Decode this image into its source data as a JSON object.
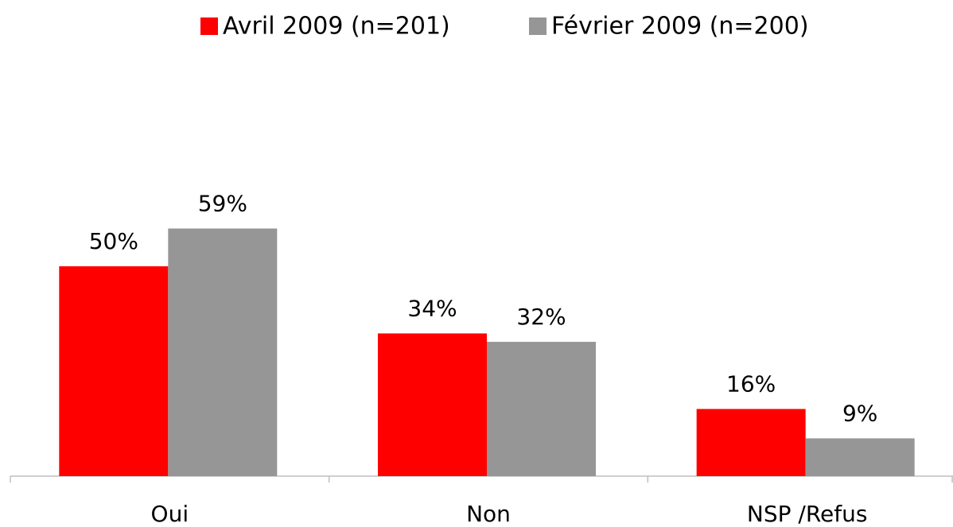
{
  "chart_data": {
    "type": "bar",
    "categories": [
      "Oui",
      "Non",
      "NSP /Refus"
    ],
    "series": [
      {
        "name": "Avril 2009 (n=201)",
        "color": "#ff0000",
        "values": [
          50,
          34,
          16
        ],
        "value_labels": [
          "50%",
          "34%",
          "16%"
        ]
      },
      {
        "name": "Février 2009 (n=200)",
        "color": "#969696",
        "values": [
          59,
          32,
          9
        ],
        "value_labels": [
          "59%",
          "32%",
          "9%"
        ]
      }
    ],
    "legend": "top"
  }
}
